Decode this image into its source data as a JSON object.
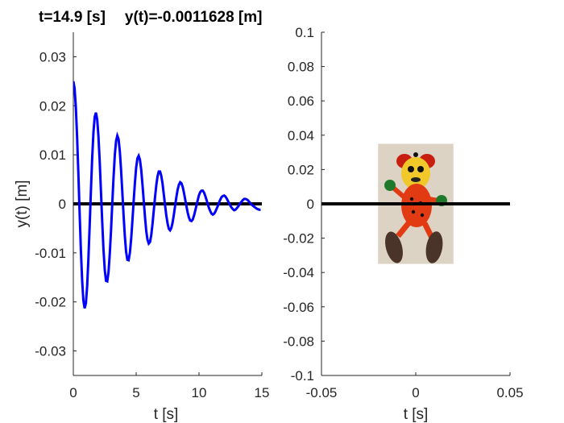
{
  "title": {
    "time_text": "t=14.9 [s]",
    "value_text": "y(t)=-0.0011628 [m]"
  },
  "colors": {
    "signal": "#0000ff",
    "baseline": "#000000",
    "axis": "#262626"
  },
  "chart_data": [
    {
      "type": "line",
      "xlabel": "t [s]",
      "ylabel": "y(t) [m]",
      "xlim": [
        0,
        15
      ],
      "ylim": [
        -0.035,
        0.035
      ],
      "xticks": [
        0,
        5,
        10,
        15
      ],
      "yticks": [
        -0.03,
        -0.02,
        -0.01,
        0,
        0.01,
        0.02,
        0.03
      ],
      "xtick_labels": [
        "0",
        "5",
        "10",
        "15"
      ],
      "ytick_labels": [
        "-0.03",
        "-0.02",
        "-0.01",
        "0",
        "0.01",
        "0.02",
        "0.03"
      ],
      "grid": false,
      "baseline": {
        "y": 0,
        "x": [
          0,
          15
        ]
      },
      "series": [
        {
          "x": [
            0,
            0.1,
            0.2,
            0.3,
            0.4,
            0.5,
            0.6,
            0.7,
            0.8,
            0.9,
            1.0,
            1.1,
            1.2,
            1.3,
            1.4,
            1.5,
            1.6,
            1.7,
            1.8,
            1.9,
            2.0,
            2.1,
            2.2,
            2.3,
            2.4,
            2.5,
            2.6,
            2.7,
            2.8,
            2.9,
            3.0,
            3.1,
            3.2,
            3.3,
            3.4,
            3.5,
            3.6,
            3.7,
            3.8,
            3.9,
            4.0,
            4.1,
            4.2,
            4.3,
            4.4,
            4.5,
            4.6,
            4.7,
            4.8,
            4.9,
            5.0,
            5.1,
            5.2,
            5.3,
            5.4,
            5.5,
            5.6,
            5.7,
            5.8,
            5.9,
            6.0,
            6.1,
            6.2,
            6.3,
            6.4,
            6.5,
            6.6,
            6.7,
            6.8,
            6.9,
            7.0,
            7.1,
            7.2,
            7.3,
            7.4,
            7.5,
            7.6,
            7.7,
            7.8,
            7.9,
            8.0,
            8.1,
            8.2,
            8.3,
            8.4,
            8.5,
            8.6,
            8.7,
            8.8,
            8.9,
            9.0,
            9.1,
            9.2,
            9.3,
            9.4,
            9.5,
            9.6,
            9.7,
            9.8,
            9.9,
            10.0,
            10.1,
            10.2,
            10.3,
            10.4,
            10.5,
            10.6,
            10.7,
            10.8,
            10.9,
            11.0,
            11.1,
            11.2,
            11.3,
            11.4,
            11.5,
            11.6,
            11.7,
            11.8,
            11.9,
            12.0,
            12.1,
            12.2,
            12.3,
            12.4,
            12.5,
            12.6,
            12.7,
            12.8,
            12.9,
            13.0,
            13.1,
            13.2,
            13.3,
            13.4,
            13.5,
            13.6,
            13.7,
            13.8,
            13.9,
            14.0,
            14.1,
            14.2,
            14.3,
            14.4,
            14.5,
            14.6,
            14.7,
            14.8,
            14.9
          ],
          "y": [
            0.025,
            0.0236,
            0.0197,
            0.0137,
            0.0063,
            -0.0017,
            -0.0093,
            -0.0155,
            -0.0197,
            -0.0213,
            -0.0203,
            -0.0168,
            -0.0112,
            -0.0045,
            0.0027,
            0.0093,
            0.0145,
            0.0177,
            0.0186,
            0.0172,
            0.0137,
            0.0086,
            0.0025,
            -0.0037,
            -0.0093,
            -0.0134,
            -0.0157,
            -0.0158,
            -0.0139,
            -0.0102,
            -0.0054,
            0.0001,
            0.0054,
            0.0099,
            0.0128,
            0.0139,
            0.0132,
            0.0107,
            0.0069,
            0.0023,
            -0.0024,
            -0.0066,
            -0.0098,
            -0.0114,
            -0.0115,
            -0.01,
            -0.0072,
            -0.0035,
            0.0005,
            0.0043,
            0.0074,
            0.0093,
            0.0098,
            0.009,
            0.007,
            0.004,
            0.0007,
            -0.0026,
            -0.0055,
            -0.0073,
            -0.0081,
            -0.0078,
            -0.0064,
            -0.0041,
            -0.0014,
            0.0013,
            0.0038,
            0.0056,
            0.0066,
            0.0066,
            0.0057,
            0.0041,
            0.0019,
            -0.0003,
            -0.0024,
            -0.004,
            -0.0051,
            -0.0054,
            -0.0049,
            -0.0038,
            -0.0022,
            -0.0004,
            0.0014,
            0.0029,
            0.0039,
            0.0044,
            0.0042,
            0.0035,
            0.0023,
            0.0009,
            -0.0005,
            -0.0018,
            -0.0028,
            -0.0034,
            -0.0035,
            -0.0032,
            -0.0024,
            -0.0014,
            -0.0003,
            0.0008,
            0.0018,
            0.0024,
            0.0027,
            0.0027,
            0.0023,
            0.0016,
            0.0008,
            -0.0001,
            -0.0009,
            -0.0015,
            -0.002,
            -0.0022,
            -0.002,
            -0.0016,
            -0.001,
            -0.0004,
            0.0003,
            0.0009,
            0.0014,
            0.0016,
            0.0017,
            0.0015,
            0.0011,
            0.0006,
            0.0001,
            -0.0004,
            -0.0008,
            -0.0011,
            -0.0013,
            -0.0012,
            -0.0009,
            -0.0006,
            -0.0002,
            0.0002,
            0.0005,
            0.0008,
            0.001,
            0.001,
            0.0009,
            0.0007,
            0.0004,
            0.0001,
            -0.0002,
            -0.0004,
            -0.0006,
            -0.0008,
            -0.001,
            -0.0011,
            -0.0012,
            -0.0011628
          ]
        }
      ]
    },
    {
      "type": "scatter",
      "xlabel": "t [s]",
      "ylabel": "",
      "xlim": [
        -0.05,
        0.05
      ],
      "ylim": [
        -0.1,
        0.1
      ],
      "xticks": [
        -0.05,
        0,
        0.05
      ],
      "yticks": [
        -0.1,
        -0.08,
        -0.06,
        -0.04,
        -0.02,
        0,
        0.02,
        0.04,
        0.06,
        0.08,
        0.1
      ],
      "xtick_labels": [
        "-0.05",
        "0",
        "0.05"
      ],
      "ytick_labels": [
        "-0.1",
        "-0.08",
        "-0.06",
        "-0.04",
        "-0.02",
        "0",
        "0.02",
        "0.04",
        "0.06",
        "0.08",
        "0.1"
      ],
      "grid": false,
      "baseline": {
        "y": 0,
        "x": [
          -0.05,
          0.05
        ]
      },
      "image_extent": {
        "x": [
          -0.02,
          0.02
        ],
        "y": [
          -0.035,
          0.035
        ]
      },
      "object": "toy figure on spring"
    }
  ]
}
